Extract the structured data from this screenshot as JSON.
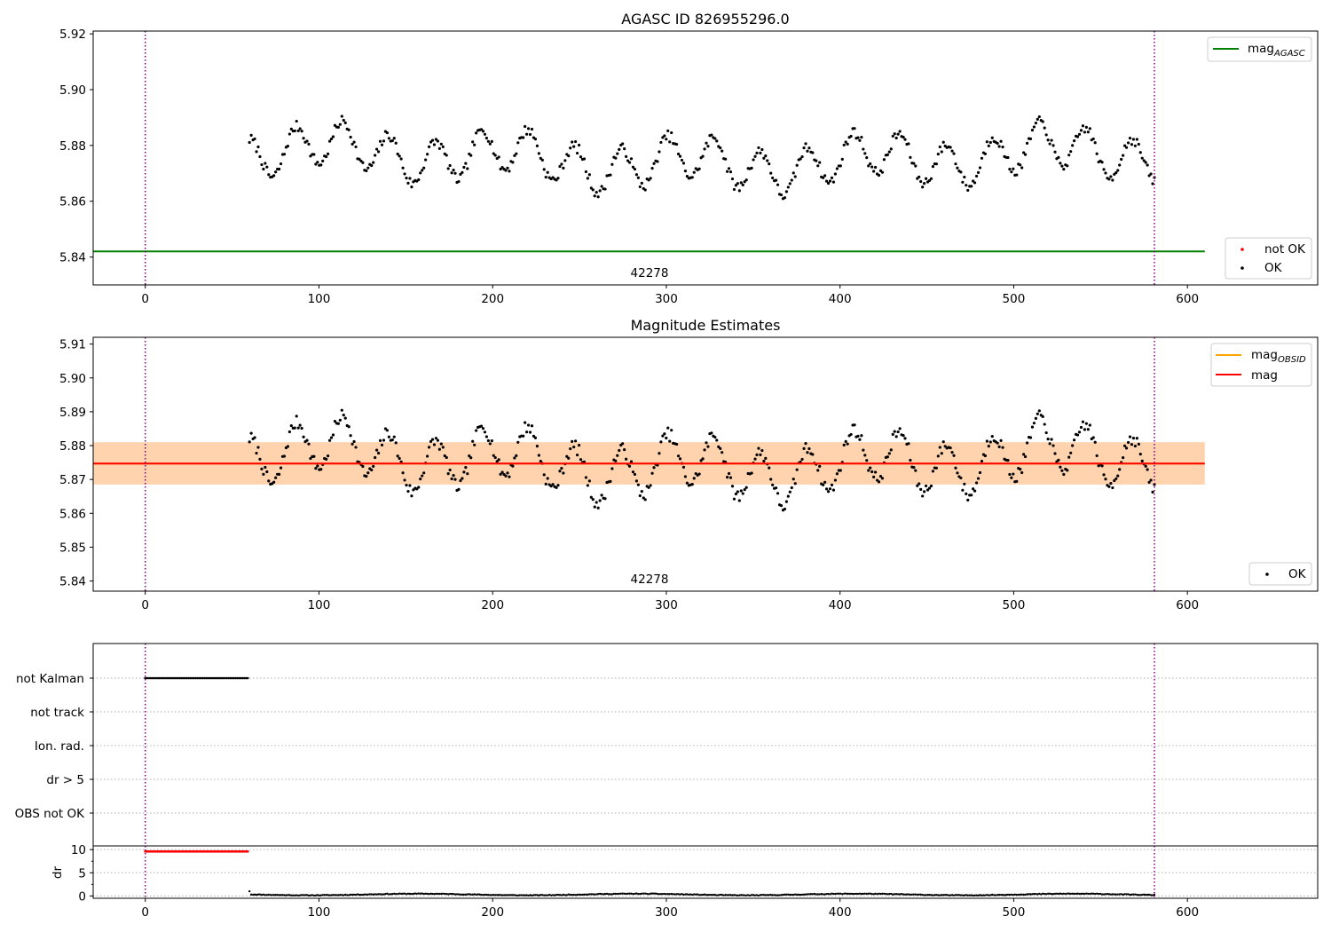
{
  "chart_data": [
    {
      "type": "scatter",
      "title": "AGASC ID 826955296.0",
      "xlim": [
        -30,
        675
      ],
      "ylim": [
        5.83,
        5.921
      ],
      "xticks": [
        0,
        100,
        200,
        300,
        400,
        500,
        600
      ],
      "yticks": [
        5.84,
        5.86,
        5.88,
        5.9,
        5.92
      ],
      "ytick_labels": [
        "5.84",
        "5.86",
        "5.88",
        "5.90",
        "5.92"
      ],
      "vlines": [
        0,
        581
      ],
      "vline_color": "#800080",
      "hline": {
        "name": "mag_AGASC",
        "y": 5.842,
        "x_range": [
          -30,
          610
        ],
        "color": "#008000"
      },
      "annotation": {
        "text": "42278",
        "x": 290
      },
      "series": [
        {
          "name": "not OK",
          "color": "#ff0000",
          "x": [],
          "y": []
        },
        {
          "name": "OK",
          "color": "#000000",
          "x_start": 60,
          "x_end": 581,
          "n": 520,
          "y_min": 5.86,
          "y_max": 5.891
        }
      ],
      "legend": {
        "upper": [
          {
            "label": "mag",
            "sub": "AGASC",
            "color": "#008000",
            "kind": "line"
          }
        ],
        "lower": [
          {
            "label": "not OK",
            "color": "#ff0000",
            "kind": "dot"
          },
          {
            "label": "OK",
            "color": "#000000",
            "kind": "dot"
          }
        ],
        "placement": "right"
      },
      "grid": false
    },
    {
      "type": "scatter",
      "title": "Magnitude Estimates",
      "xlim": [
        -30,
        675
      ],
      "ylim": [
        5.837,
        5.912
      ],
      "xticks": [
        0,
        100,
        200,
        300,
        400,
        500,
        600
      ],
      "yticks": [
        5.84,
        5.85,
        5.86,
        5.87,
        5.88,
        5.89,
        5.9,
        5.91
      ],
      "ytick_labels": [
        "5.84",
        "5.85",
        "5.86",
        "5.87",
        "5.88",
        "5.89",
        "5.90",
        "5.91"
      ],
      "vlines": [
        0,
        581
      ],
      "vline_color": "#800080",
      "bands": [
        {
          "name": "mag band",
          "y_range": [
            5.8685,
            5.881
          ],
          "x_range": [
            -30,
            610
          ],
          "color": "#ffc0cb",
          "opacity": 0.45
        },
        {
          "name": "mag_OBSID band",
          "y_range": [
            5.8685,
            5.881
          ],
          "x_range": [
            -30,
            610
          ],
          "color": "#ffa500",
          "opacity": 0.25
        }
      ],
      "hlines": [
        {
          "name": "mag_OBSID",
          "y": 5.8747,
          "x_range": [
            -30,
            610
          ],
          "color": "#ffa500"
        },
        {
          "name": "mag",
          "y": 5.8747,
          "x_range": [
            -30,
            610
          ],
          "color": "#ff0000"
        }
      ],
      "annotation": {
        "text": "42278",
        "x": 290
      },
      "series": [
        {
          "name": "OK",
          "color": "#000000",
          "x_start": 60,
          "x_end": 581,
          "n": 520,
          "y_min": 5.86,
          "y_max": 5.891
        }
      ],
      "legend": {
        "upper": [
          {
            "label": "mag",
            "sub": "OBSID",
            "color": "#ffa500",
            "kind": "line"
          },
          {
            "label": "mag",
            "sub": "",
            "color": "#ff0000",
            "kind": "line"
          }
        ],
        "lower": [
          {
            "label": "OK",
            "color": "#000000",
            "kind": "dot"
          }
        ],
        "placement": "right"
      },
      "grid": false
    },
    {
      "type": "scatter",
      "title": "",
      "xlim": [
        -30,
        675
      ],
      "categories": [
        "not Kalman",
        "not track",
        "Ion. rad.",
        "dr > 5",
        "OBS not OK"
      ],
      "vlines": [
        0,
        581
      ],
      "vline_color": "#800080",
      "series": [
        {
          "name": "not Kalman",
          "color": "#000000",
          "x_start": 0,
          "x_end": 59,
          "n": 60
        },
        {
          "name": "not track",
          "color": "#000000",
          "x_start": null,
          "x_end": null,
          "n": 0
        },
        {
          "name": "Ion. rad.",
          "color": "#000000",
          "x_start": null,
          "x_end": null,
          "n": 0
        },
        {
          "name": "dr > 5",
          "color": "#000000",
          "x_start": null,
          "x_end": null,
          "n": 0
        },
        {
          "name": "OBS not OK",
          "color": "#000000",
          "x_start": null,
          "x_end": null,
          "n": 0
        }
      ],
      "grid": true
    },
    {
      "type": "scatter",
      "title": "",
      "ylabel": "dr",
      "xlim": [
        -30,
        675
      ],
      "ylim": [
        -0.5,
        10.8
      ],
      "xticks": [
        0,
        100,
        200,
        300,
        400,
        500,
        600
      ],
      "yticks": [
        0,
        5,
        10
      ],
      "ytick_labels": [
        "0",
        "5",
        "10"
      ],
      "vlines": [
        0,
        581
      ],
      "vline_color": "#800080",
      "series": [
        {
          "name": "dr (clipped)",
          "color": "#ff0000",
          "x_start": 0,
          "x_end": 59,
          "n": 60,
          "y": 9.6
        },
        {
          "name": "dr",
          "color": "#000000",
          "x_start": 60,
          "x_end": 581,
          "n": 520,
          "y_min": 0.05,
          "y_max": 0.6,
          "y_first": 1.0
        }
      ],
      "grid": true
    }
  ]
}
